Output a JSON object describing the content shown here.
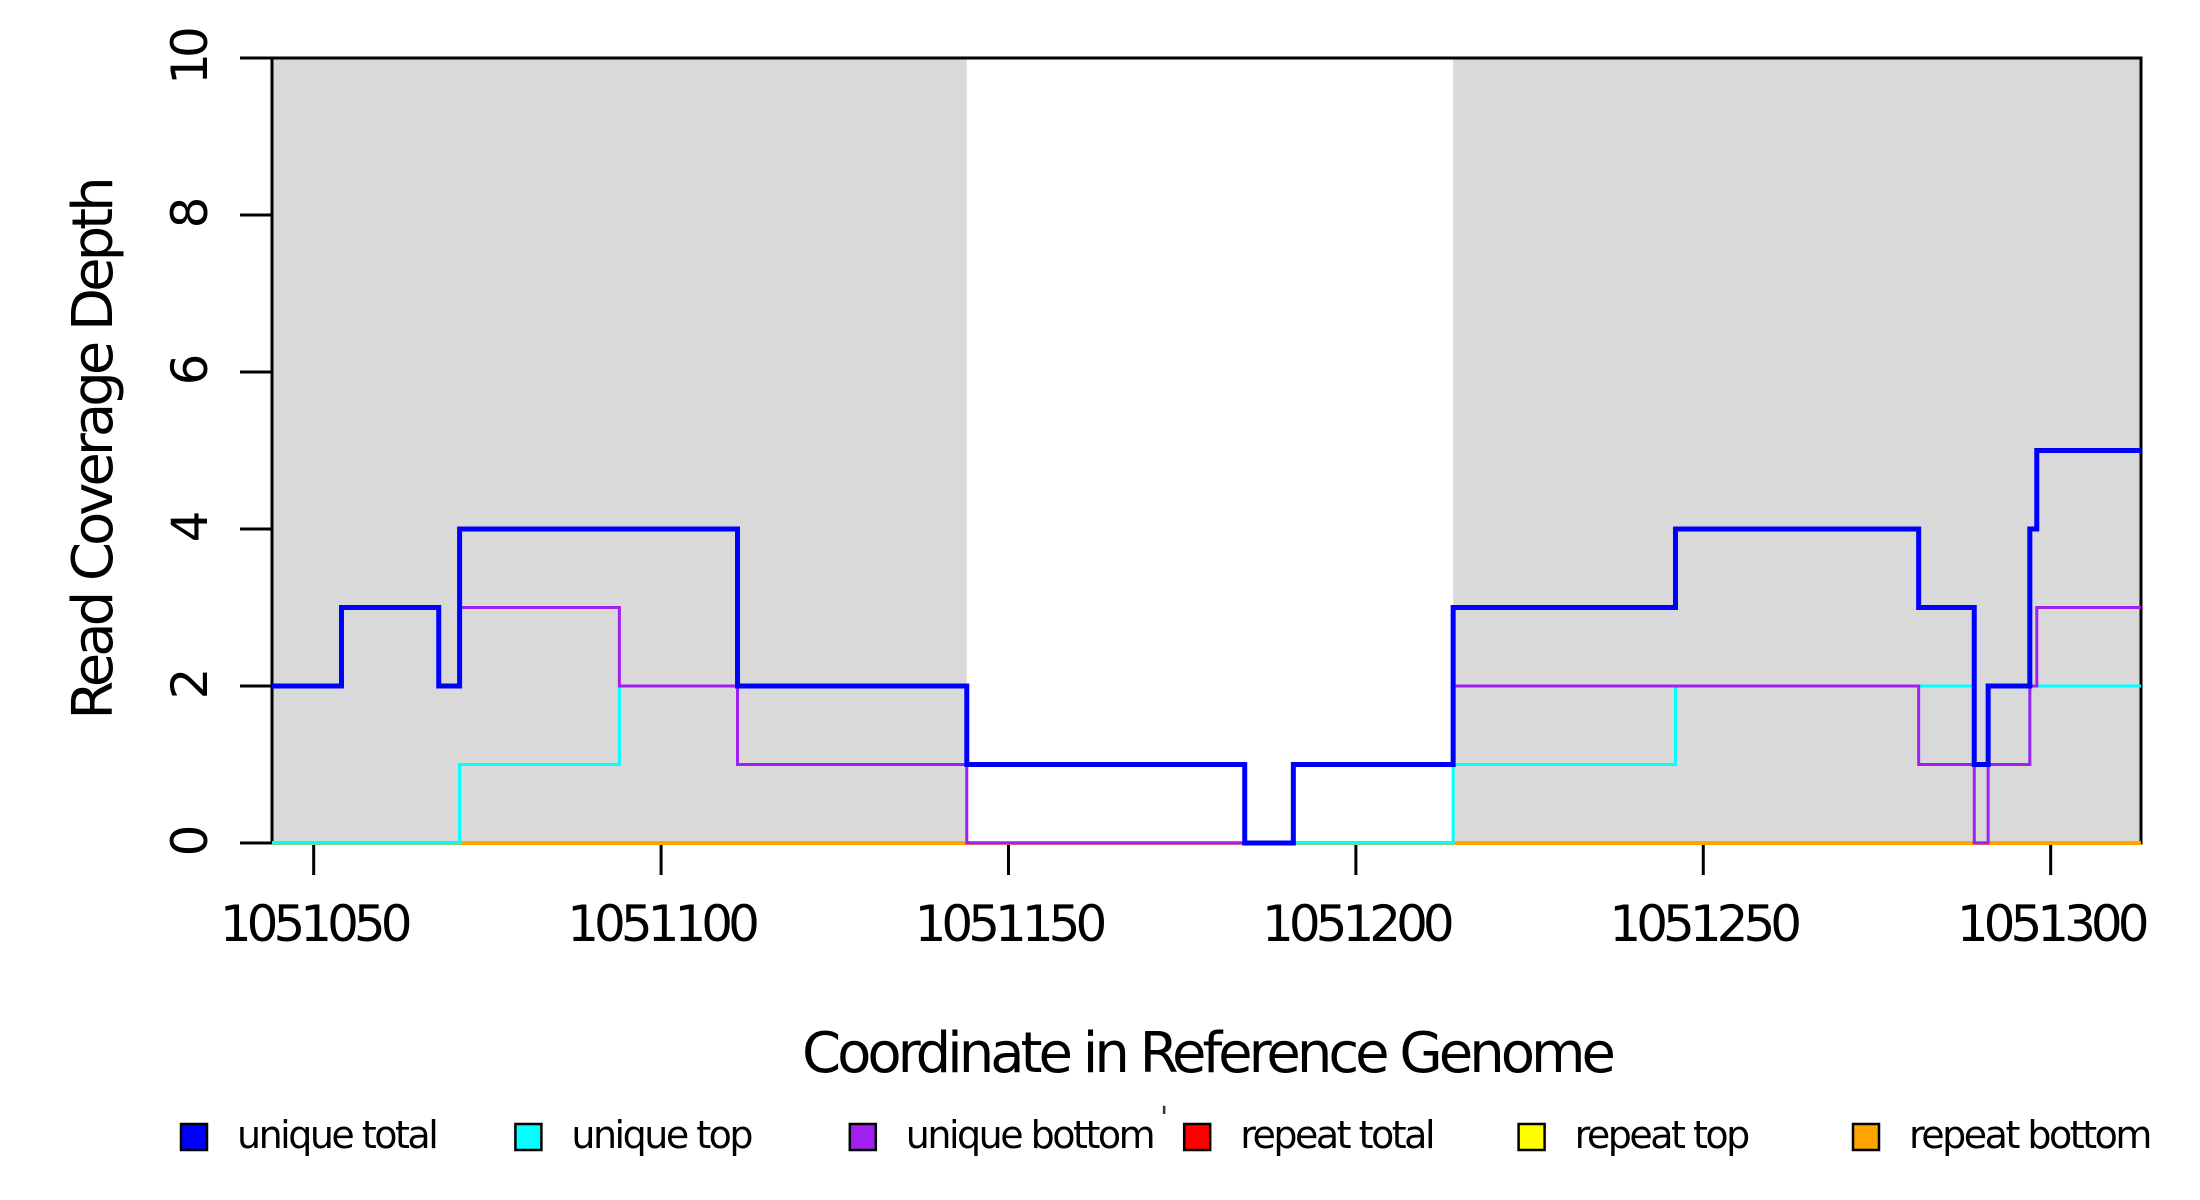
{
  "chart_data": {
    "type": "line",
    "subtype": "step-post",
    "title": "",
    "xlabel": "Coordinate in Reference Genome",
    "ylabel": "Read Coverage Depth",
    "xlim": [
      1051044,
      1051313
    ],
    "ylim": [
      0,
      10
    ],
    "x_ticks": [
      1051050,
      1051100,
      1051150,
      1051200,
      1051250,
      1051300
    ],
    "y_ticks": [
      0,
      2,
      4,
      6,
      8,
      10
    ],
    "grid": false,
    "background_color": "#ffffff",
    "shade_color": "#d9d9d9",
    "axis_color": "#000000",
    "shaded_regions": [
      {
        "x0": 1051044,
        "x1": 1051144
      },
      {
        "x0": 1051214,
        "x1": 1051313
      }
    ],
    "legend_position": "bottom",
    "series": [
      {
        "name": "unique total",
        "color": "#0000ff",
        "width": 5,
        "points": [
          [
            1051044,
            2
          ],
          [
            1051054,
            3
          ],
          [
            1051068,
            2
          ],
          [
            1051071,
            4
          ],
          [
            1051111,
            2
          ],
          [
            1051144,
            1
          ],
          [
            1051184,
            0
          ],
          [
            1051191,
            1
          ],
          [
            1051214,
            3
          ],
          [
            1051246,
            4
          ],
          [
            1051281,
            3
          ],
          [
            1051289,
            1
          ],
          [
            1051291,
            2
          ],
          [
            1051297,
            4
          ],
          [
            1051298,
            5
          ]
        ]
      },
      {
        "name": "unique top",
        "color": "#00ffff",
        "width": 3,
        "points": [
          [
            1051044,
            0
          ],
          [
            1051071,
            1
          ],
          [
            1051094,
            2
          ],
          [
            1051111,
            1
          ],
          [
            1051184,
            0
          ],
          [
            1051214,
            1
          ],
          [
            1051246,
            2
          ],
          [
            1051289,
            1
          ],
          [
            1051297,
            2
          ]
        ]
      },
      {
        "name": "unique bottom",
        "color": "#a020f0",
        "width": 3,
        "points": [
          [
            1051044,
            2
          ],
          [
            1051054,
            3
          ],
          [
            1051068,
            2
          ],
          [
            1051071,
            3
          ],
          [
            1051094,
            2
          ],
          [
            1051111,
            1
          ],
          [
            1051144,
            0
          ],
          [
            1051191,
            1
          ],
          [
            1051214,
            2
          ],
          [
            1051281,
            1
          ],
          [
            1051289,
            0
          ],
          [
            1051291,
            1
          ],
          [
            1051297,
            2
          ],
          [
            1051298,
            3
          ]
        ]
      },
      {
        "name": "repeat total",
        "color": "#ff0000",
        "width": 3,
        "points": [
          [
            1051044,
            0
          ]
        ]
      },
      {
        "name": "repeat top",
        "color": "#ffff00",
        "width": 3,
        "points": [
          [
            1051044,
            0
          ]
        ]
      },
      {
        "name": "repeat bottom",
        "color": "#ffa500",
        "width": 4,
        "points": [
          [
            1051044,
            0
          ]
        ]
      }
    ],
    "draw_order": [
      3,
      4,
      5,
      1,
      2,
      0
    ],
    "stray_mark": "'"
  }
}
